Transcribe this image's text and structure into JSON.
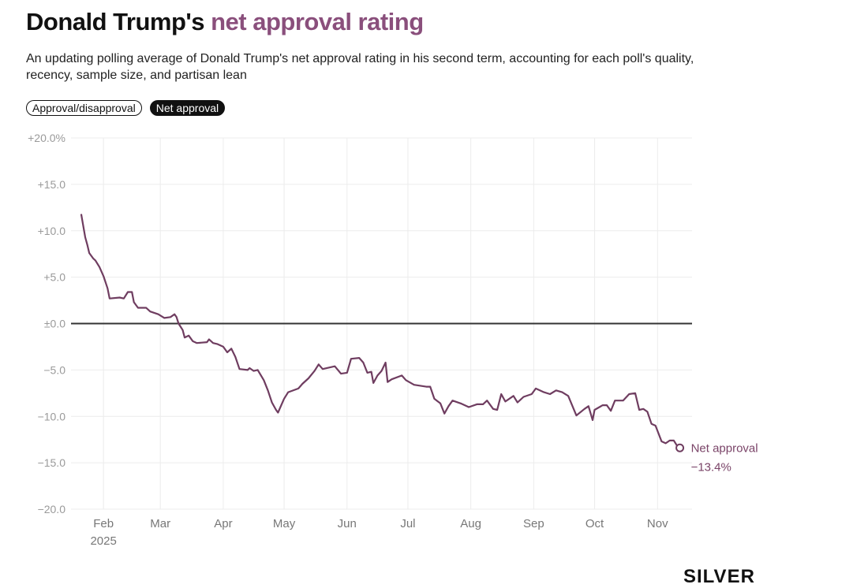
{
  "header": {
    "title_prefix": "Donald Trump's",
    "title_highlight": "net approval rating",
    "subtitle": "An updating polling average of Donald Trump's net approval rating in his second term, accounting for each poll's quality, recency, sample size, and partisan lean"
  },
  "toggles": [
    {
      "label": "Approval/disapproval",
      "active": false
    },
    {
      "label": "Net approval",
      "active": true
    }
  ],
  "logo": "SILVER",
  "colors": {
    "accent": "#8a4f7c",
    "line": "#6f3d60",
    "zero_line": "#333333",
    "grid": "#ececec"
  },
  "chart_data": {
    "type": "line",
    "title": "Donald Trump's net approval rating",
    "xlabel": "",
    "ylabel": "",
    "xlim": [
      "2025-01-16",
      "2025-11-18"
    ],
    "ylim": [
      -20,
      20
    ],
    "grid": true,
    "y_ticks": [
      {
        "value": 20,
        "label": "+20.0%"
      },
      {
        "value": 15,
        "label": "+15.0"
      },
      {
        "value": 10,
        "label": "+10.0"
      },
      {
        "value": 5,
        "label": "+5.0"
      },
      {
        "value": 0,
        "label": "±0.0"
      },
      {
        "value": -5,
        "label": "−5.0"
      },
      {
        "value": -10,
        "label": "−10.0"
      },
      {
        "value": -15,
        "label": "−15.0"
      },
      {
        "value": -20,
        "label": "−20.0"
      }
    ],
    "x_ticks": [
      {
        "date": "2025-02-01",
        "label": "Feb",
        "sublabel": "2025"
      },
      {
        "date": "2025-03-01",
        "label": "Mar"
      },
      {
        "date": "2025-04-01",
        "label": "Apr"
      },
      {
        "date": "2025-05-01",
        "label": "May"
      },
      {
        "date": "2025-06-01",
        "label": "Jun"
      },
      {
        "date": "2025-07-01",
        "label": "Jul"
      },
      {
        "date": "2025-08-01",
        "label": "Aug"
      },
      {
        "date": "2025-09-01",
        "label": "Sep"
      },
      {
        "date": "2025-10-01",
        "label": "Oct"
      },
      {
        "date": "2025-11-01",
        "label": "Nov"
      }
    ],
    "series": [
      {
        "name": "Net approval",
        "latest_label": "−13.4%",
        "points": [
          [
            "2025-01-21",
            11.8
          ],
          [
            "2025-01-23",
            9.3
          ],
          [
            "2025-01-24",
            8.5
          ],
          [
            "2025-01-25",
            7.6
          ],
          [
            "2025-01-27",
            7.0
          ],
          [
            "2025-01-28",
            6.8
          ],
          [
            "2025-01-30",
            6.1
          ],
          [
            "2025-02-01",
            5.1
          ],
          [
            "2025-02-03",
            3.8
          ],
          [
            "2025-02-04",
            2.7
          ],
          [
            "2025-02-09",
            2.8
          ],
          [
            "2025-02-11",
            2.7
          ],
          [
            "2025-02-13",
            3.4
          ],
          [
            "2025-02-15",
            3.4
          ],
          [
            "2025-02-16",
            2.3
          ],
          [
            "2025-02-18",
            1.7
          ],
          [
            "2025-02-22",
            1.7
          ],
          [
            "2025-02-24",
            1.3
          ],
          [
            "2025-02-28",
            1.0
          ],
          [
            "2025-03-03",
            0.6
          ],
          [
            "2025-03-06",
            0.7
          ],
          [
            "2025-03-08",
            1.0
          ],
          [
            "2025-03-09",
            0.7
          ],
          [
            "2025-03-10",
            0.0
          ],
          [
            "2025-03-12",
            -0.7
          ],
          [
            "2025-03-13",
            -1.5
          ],
          [
            "2025-03-15",
            -1.3
          ],
          [
            "2025-03-17",
            -1.9
          ],
          [
            "2025-03-19",
            -2.1
          ],
          [
            "2025-03-24",
            -2.0
          ],
          [
            "2025-03-25",
            -1.7
          ],
          [
            "2025-03-27",
            -2.1
          ],
          [
            "2025-03-29",
            -2.2
          ],
          [
            "2025-04-01",
            -2.5
          ],
          [
            "2025-04-03",
            -3.1
          ],
          [
            "2025-04-05",
            -2.7
          ],
          [
            "2025-04-07",
            -3.6
          ],
          [
            "2025-04-09",
            -4.9
          ],
          [
            "2025-04-13",
            -5.0
          ],
          [
            "2025-04-14",
            -4.8
          ],
          [
            "2025-04-16",
            -5.1
          ],
          [
            "2025-04-18",
            -5.0
          ],
          [
            "2025-04-21",
            -6.1
          ],
          [
            "2025-04-23",
            -7.2
          ],
          [
            "2025-04-25",
            -8.5
          ],
          [
            "2025-04-27",
            -9.3
          ],
          [
            "2025-04-28",
            -9.6
          ],
          [
            "2025-05-01",
            -8.1
          ],
          [
            "2025-05-03",
            -7.4
          ],
          [
            "2025-05-08",
            -7.0
          ],
          [
            "2025-05-10",
            -6.5
          ],
          [
            "2025-05-13",
            -5.9
          ],
          [
            "2025-05-16",
            -5.1
          ],
          [
            "2025-05-18",
            -4.4
          ],
          [
            "2025-05-20",
            -4.9
          ],
          [
            "2025-05-26",
            -4.6
          ],
          [
            "2025-05-29",
            -5.4
          ],
          [
            "2025-06-01",
            -5.3
          ],
          [
            "2025-06-03",
            -3.8
          ],
          [
            "2025-06-07",
            -3.7
          ],
          [
            "2025-06-09",
            -4.2
          ],
          [
            "2025-06-11",
            -5.3
          ],
          [
            "2025-06-13",
            -5.2
          ],
          [
            "2025-06-14",
            -6.4
          ],
          [
            "2025-06-16",
            -5.6
          ],
          [
            "2025-06-18",
            -5.1
          ],
          [
            "2025-06-20",
            -4.2
          ],
          [
            "2025-06-21",
            -6.3
          ],
          [
            "2025-06-23",
            -6.0
          ],
          [
            "2025-06-28",
            -5.6
          ],
          [
            "2025-06-30",
            -6.1
          ],
          [
            "2025-07-04",
            -6.6
          ],
          [
            "2025-07-10",
            -6.8
          ],
          [
            "2025-07-12",
            -6.8
          ],
          [
            "2025-07-14",
            -8.1
          ],
          [
            "2025-07-17",
            -8.6
          ],
          [
            "2025-07-19",
            -9.7
          ],
          [
            "2025-07-21",
            -8.9
          ],
          [
            "2025-07-23",
            -8.3
          ],
          [
            "2025-07-27",
            -8.6
          ],
          [
            "2025-07-31",
            -9.0
          ],
          [
            "2025-08-04",
            -8.7
          ],
          [
            "2025-08-07",
            -8.7
          ],
          [
            "2025-08-09",
            -8.3
          ],
          [
            "2025-08-12",
            -9.2
          ],
          [
            "2025-08-14",
            -9.3
          ],
          [
            "2025-08-16",
            -7.6
          ],
          [
            "2025-08-18",
            -8.4
          ],
          [
            "2025-08-22",
            -7.8
          ],
          [
            "2025-08-24",
            -8.5
          ],
          [
            "2025-08-27",
            -7.9
          ],
          [
            "2025-08-31",
            -7.6
          ],
          [
            "2025-09-02",
            -7.0
          ],
          [
            "2025-09-06",
            -7.4
          ],
          [
            "2025-09-09",
            -7.6
          ],
          [
            "2025-09-12",
            -7.2
          ],
          [
            "2025-09-15",
            -7.4
          ],
          [
            "2025-09-18",
            -7.8
          ],
          [
            "2025-09-22",
            -9.9
          ],
          [
            "2025-09-26",
            -9.2
          ],
          [
            "2025-09-28",
            -8.9
          ],
          [
            "2025-09-30",
            -10.4
          ],
          [
            "2025-10-01",
            -9.3
          ],
          [
            "2025-10-05",
            -8.8
          ],
          [
            "2025-10-07",
            -8.8
          ],
          [
            "2025-10-09",
            -9.4
          ],
          [
            "2025-10-11",
            -8.3
          ],
          [
            "2025-10-15",
            -8.3
          ],
          [
            "2025-10-18",
            -7.6
          ],
          [
            "2025-10-21",
            -7.5
          ],
          [
            "2025-10-23",
            -9.3
          ],
          [
            "2025-10-25",
            -9.2
          ],
          [
            "2025-10-27",
            -9.5
          ],
          [
            "2025-10-29",
            -10.8
          ],
          [
            "2025-10-31",
            -11.0
          ],
          [
            "2025-11-03",
            -12.7
          ],
          [
            "2025-11-05",
            -12.9
          ],
          [
            "2025-11-07",
            -12.6
          ],
          [
            "2025-11-09",
            -12.6
          ],
          [
            "2025-11-11",
            -13.3
          ],
          [
            "2025-11-12",
            -13.4
          ]
        ]
      }
    ]
  }
}
